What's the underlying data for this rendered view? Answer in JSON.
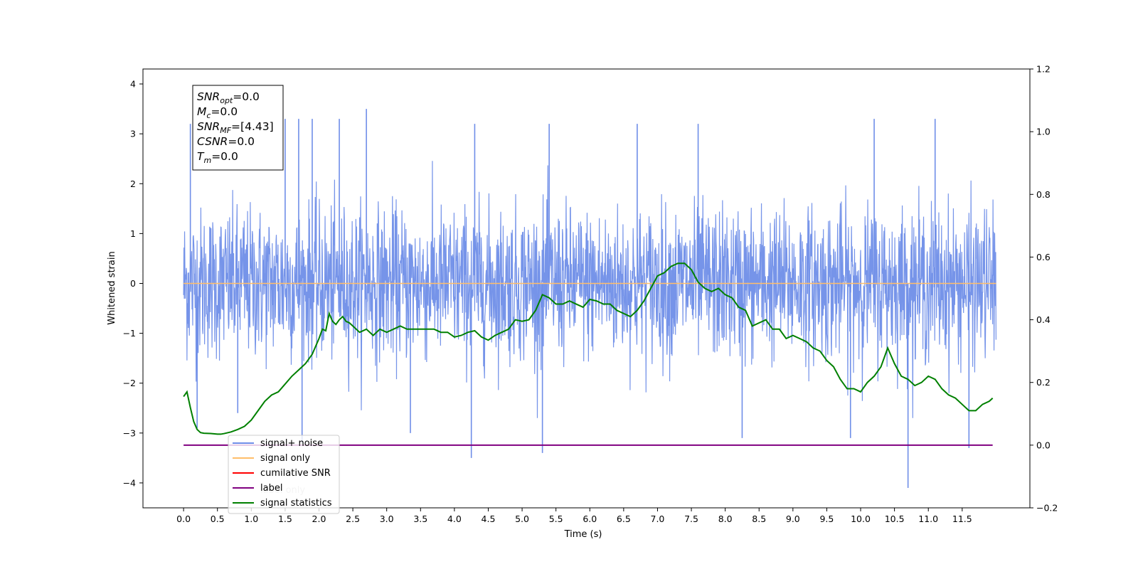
{
  "chart_data": {
    "type": "line",
    "xlabel": "Time (s)",
    "ylabel": "Whitened strain",
    "xlim": [
      -0.6,
      12.5
    ],
    "ylim": [
      -4.5,
      4.3
    ],
    "y2lim": [
      -0.2,
      1.2
    ],
    "x_ticks": [
      "0.0",
      "0.5",
      "1.0",
      "1.5",
      "2.0",
      "2.5",
      "3.0",
      "3.5",
      "4.0",
      "4.5",
      "5.0",
      "5.5",
      "6.0",
      "6.5",
      "7.0",
      "7.5",
      "8.0",
      "8.5",
      "9.0",
      "9.5",
      "10.0",
      "10.5",
      "11.0",
      "11.5"
    ],
    "y_ticks": [
      "4",
      "3",
      "2",
      "1",
      "0",
      "−1",
      "−2",
      "−3",
      "−4"
    ],
    "y2_ticks": [
      "1.2",
      "1.0",
      "0.8",
      "0.6",
      "0.4",
      "0.2",
      "0.0",
      "−0.2"
    ],
    "legend_position": "lower-left",
    "legend": [
      {
        "label": "signal+ noise",
        "color": "#6f8ee8"
      },
      {
        "label": "signal only",
        "color": "#ffbe6a"
      },
      {
        "label": "cumilative SNR",
        "color": "#ff0000"
      },
      {
        "label": "label",
        "color": "#800080"
      },
      {
        "label": "signal statistics",
        "color": "#008000"
      }
    ],
    "series": [
      {
        "name": "signal+ noise",
        "color": "#6f8ee8",
        "description_values": {
          "x_range": [
            0.0,
            12.0
          ],
          "typical_band": [
            -1.5,
            1.5
          ],
          "peaks": [
            {
              "x": 0.1,
              "y": 3.2
            },
            {
              "x": 0.2,
              "y": -2.9
            },
            {
              "x": 0.8,
              "y": -2.6
            },
            {
              "x": 1.5,
              "y": 3.3
            },
            {
              "x": 1.7,
              "y": 3.3
            },
            {
              "x": 1.75,
              "y": -3.2
            },
            {
              "x": 1.9,
              "y": 3.3
            },
            {
              "x": 2.3,
              "y": 3.3
            },
            {
              "x": 2.7,
              "y": 3.5
            },
            {
              "x": 3.35,
              "y": -3.0
            },
            {
              "x": 4.25,
              "y": -3.5
            },
            {
              "x": 4.3,
              "y": 3.2
            },
            {
              "x": 5.3,
              "y": -3.4
            },
            {
              "x": 5.4,
              "y": 3.2
            },
            {
              "x": 6.7,
              "y": 3.2
            },
            {
              "x": 7.6,
              "y": 3.2
            },
            {
              "x": 8.25,
              "y": -3.1
            },
            {
              "x": 9.85,
              "y": -3.1
            },
            {
              "x": 10.2,
              "y": 3.3
            },
            {
              "x": 10.7,
              "y": -4.1
            },
            {
              "x": 11.1,
              "y": 3.3
            },
            {
              "x": 11.6,
              "y": -3.3
            }
          ]
        }
      },
      {
        "name": "signal only",
        "color": "#ffbe6a",
        "x": [
          0.0,
          12.0
        ],
        "y": [
          0.0,
          0.0
        ]
      },
      {
        "name": "label",
        "color": "#800080",
        "axis": "right",
        "x": [
          0.0,
          11.95
        ],
        "y": [
          0.0,
          0.0
        ]
      },
      {
        "name": "signal statistics",
        "color": "#008000",
        "axis": "right",
        "x": [
          0.0,
          0.05,
          0.1,
          0.15,
          0.2,
          0.25,
          0.3,
          0.4,
          0.5,
          0.55,
          0.6,
          0.7,
          0.8,
          0.9,
          1.0,
          1.1,
          1.2,
          1.3,
          1.4,
          1.5,
          1.6,
          1.7,
          1.8,
          1.9,
          2.0,
          2.05,
          2.1,
          2.15,
          2.2,
          2.25,
          2.3,
          2.35,
          2.4,
          2.45,
          2.5,
          2.6,
          2.7,
          2.8,
          2.9,
          3.0,
          3.1,
          3.2,
          3.3,
          3.4,
          3.5,
          3.6,
          3.7,
          3.8,
          3.9,
          4.0,
          4.1,
          4.2,
          4.3,
          4.4,
          4.5,
          4.6,
          4.7,
          4.8,
          4.9,
          5.0,
          5.1,
          5.2,
          5.3,
          5.4,
          5.5,
          5.6,
          5.7,
          5.8,
          5.9,
          6.0,
          6.1,
          6.2,
          6.3,
          6.4,
          6.5,
          6.6,
          6.7,
          6.8,
          6.9,
          7.0,
          7.1,
          7.2,
          7.3,
          7.4,
          7.5,
          7.6,
          7.7,
          7.8,
          7.9,
          8.0,
          8.1,
          8.2,
          8.3,
          8.4,
          8.5,
          8.6,
          8.7,
          8.8,
          8.9,
          9.0,
          9.1,
          9.2,
          9.3,
          9.4,
          9.5,
          9.6,
          9.7,
          9.8,
          9.9,
          10.0,
          10.1,
          10.2,
          10.3,
          10.4,
          10.5,
          10.6,
          10.7,
          10.8,
          10.9,
          11.0,
          11.1,
          11.2,
          11.3,
          11.4,
          11.5,
          11.6,
          11.7,
          11.8,
          11.9,
          11.95
        ],
        "y": [
          0.155,
          0.17,
          0.12,
          0.075,
          0.05,
          0.04,
          0.038,
          0.037,
          0.035,
          0.035,
          0.037,
          0.042,
          0.05,
          0.06,
          0.08,
          0.11,
          0.14,
          0.16,
          0.17,
          0.195,
          0.22,
          0.24,
          0.26,
          0.29,
          0.34,
          0.37,
          0.365,
          0.42,
          0.395,
          0.385,
          0.4,
          0.41,
          0.395,
          0.39,
          0.38,
          0.36,
          0.37,
          0.35,
          0.37,
          0.36,
          0.37,
          0.38,
          0.37,
          0.37,
          0.37,
          0.37,
          0.37,
          0.36,
          0.36,
          0.345,
          0.35,
          0.36,
          0.365,
          0.345,
          0.335,
          0.35,
          0.36,
          0.37,
          0.4,
          0.395,
          0.4,
          0.43,
          0.48,
          0.47,
          0.45,
          0.45,
          0.46,
          0.45,
          0.44,
          0.465,
          0.46,
          0.45,
          0.45,
          0.43,
          0.42,
          0.41,
          0.43,
          0.46,
          0.5,
          0.54,
          0.55,
          0.57,
          0.58,
          0.58,
          0.56,
          0.52,
          0.5,
          0.49,
          0.5,
          0.48,
          0.47,
          0.44,
          0.43,
          0.38,
          0.39,
          0.4,
          0.37,
          0.37,
          0.34,
          0.35,
          0.34,
          0.33,
          0.31,
          0.3,
          0.27,
          0.25,
          0.21,
          0.18,
          0.18,
          0.17,
          0.2,
          0.22,
          0.25,
          0.31,
          0.26,
          0.22,
          0.21,
          0.19,
          0.2,
          0.22,
          0.21,
          0.18,
          0.16,
          0.15,
          0.13,
          0.11,
          0.11,
          0.13,
          0.14,
          0.15
        ]
      }
    ]
  },
  "info_box": {
    "lines": [
      {
        "var": "SNR",
        "sub": "opt",
        "val": "=0.0"
      },
      {
        "var": "M",
        "sub": "c",
        "val": "=0.0"
      },
      {
        "var": "SNR",
        "sub": "MF",
        "val": "=[4.43]"
      },
      {
        "var": "CSNR",
        "sub": "",
        "val": "=0.0"
      },
      {
        "var": "T",
        "sub": "m",
        "val": "=0.0"
      }
    ]
  },
  "behind_legend_text": "label only",
  "colors": {
    "noise": "#6f8ee8",
    "signal": "#ffbe6a",
    "cum_snr": "#ff0000",
    "label": "#800080",
    "stats": "#008000"
  }
}
